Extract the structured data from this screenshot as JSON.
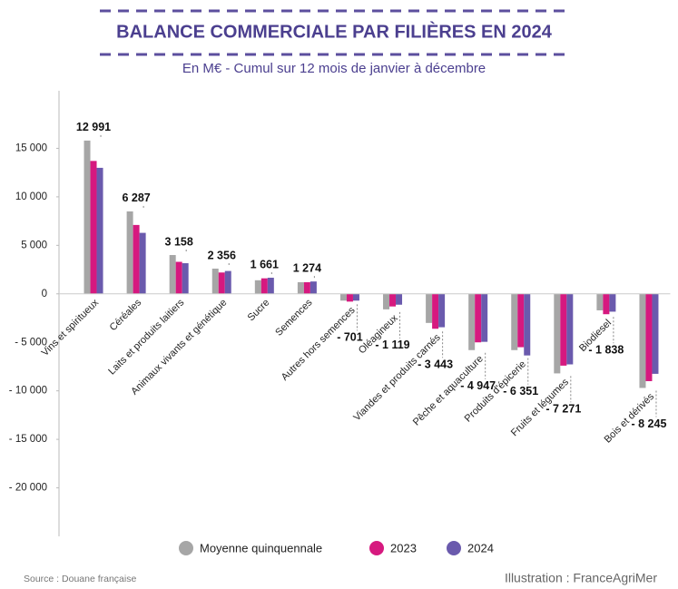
{
  "chart_data": {
    "type": "bar",
    "title": "BALANCE COMMERCIALE PAR FILIÈRES EN 2024",
    "subtitle": "En M€ - Cumul sur 12 mois de janvier à décembre",
    "source": "Source : Douane française",
    "credit": "Illustration : FranceAgriMer",
    "categories": [
      "Vins et spiritueux",
      "Céréales",
      "Laits et produits laitiers",
      "Animaux vivants et génétique",
      "Sucre",
      "Semences",
      "Autres hors semences",
      "Oléagineux",
      "Viandes et produits carnés",
      "Pêche et aquaculture",
      "Produits d'épicerie",
      "Fruits et légumes",
      "Biodiesel",
      "Bois et dérivés"
    ],
    "series": [
      {
        "name": "Moyenne quinquennale",
        "color": "#a6a6a6",
        "values": [
          15800,
          8500,
          4000,
          2600,
          1400,
          1200,
          -700,
          -1600,
          -3000,
          -5800,
          -5800,
          -8200,
          -1700,
          -9700
        ]
      },
      {
        "name": "2023",
        "color": "#d6197f",
        "values": [
          13700,
          7100,
          3300,
          2200,
          1600,
          1200,
          -800,
          -1300,
          -3600,
          -5000,
          -5500,
          -7400,
          -2100,
          -9000
        ]
      },
      {
        "name": "2024",
        "color": "#6a5aad",
        "values": [
          12991,
          6287,
          3158,
          2356,
          1661,
          1274,
          -701,
          -1119,
          -3443,
          -4947,
          -6351,
          -7271,
          -1838,
          -8245
        ],
        "value_labels": [
          "12 991",
          "6 287",
          "3 158",
          "2 356",
          "1 661",
          "1 274",
          "- 701",
          "- 1 119",
          "- 3 443",
          "- 4 947",
          "- 6 351",
          "- 7 271",
          "- 1 838",
          "- 8 245"
        ]
      }
    ],
    "ylim": [
      -25000,
      20000
    ],
    "yticks": [
      {
        "value": -20000,
        "label": "- 20 000"
      },
      {
        "value": -15000,
        "label": "- 15 000"
      },
      {
        "value": -10000,
        "label": "- 10 000"
      },
      {
        "value": -5000,
        "label": "- 5 000"
      },
      0,
      {
        "value": 5000,
        "label": "5 000"
      },
      {
        "value": 10000,
        "label": "10 000"
      },
      {
        "value": 15000,
        "label": "15 000"
      }
    ],
    "grid": false,
    "legend": "bottom"
  }
}
